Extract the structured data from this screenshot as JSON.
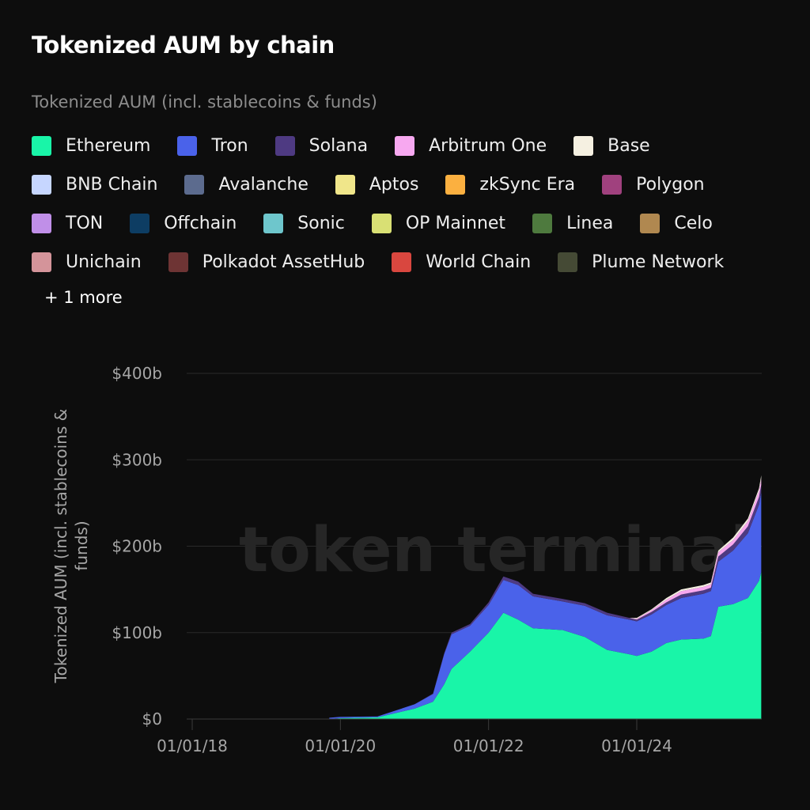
{
  "title": "Tokenized AUM by chain",
  "subtitle": "Tokenized AUM (incl. stablecoins & funds)",
  "legend_rows": [
    [
      {
        "label": "Ethereum",
        "color": "#19f5a8"
      },
      {
        "label": "Tron",
        "color": "#4a62ea"
      },
      {
        "label": "Solana",
        "color": "#4e3a82"
      },
      {
        "label": "Arbitrum One",
        "color": "#f7a8f0"
      },
      {
        "label": "Base",
        "color": "#f5f0e1"
      }
    ],
    [
      {
        "label": "BNB Chain",
        "color": "#c6d6ff"
      },
      {
        "label": "Avalanche",
        "color": "#5c6b8e"
      },
      {
        "label": "Aptos",
        "color": "#f0e68a"
      },
      {
        "label": "zkSync Era",
        "color": "#fbb040"
      },
      {
        "label": "Polygon",
        "color": "#a0417e"
      }
    ],
    [
      {
        "label": "TON",
        "color": "#c08fe8"
      },
      {
        "label": "Offchain",
        "color": "#0d3d63"
      },
      {
        "label": "Sonic",
        "color": "#6ec6cc"
      },
      {
        "label": "OP Mainnet",
        "color": "#d9e074"
      },
      {
        "label": "Linea",
        "color": "#4e7a3e"
      },
      {
        "label": "Celo",
        "color": "#b08850"
      }
    ],
    [
      {
        "label": "Unichain",
        "color": "#d4949a"
      },
      {
        "label": "Polkadot AssetHub",
        "color": "#6e3434"
      },
      {
        "label": "World Chain",
        "color": "#d9473f"
      },
      {
        "label": "Plume Network",
        "color": "#454a35"
      }
    ]
  ],
  "more_label": "+ 1 more",
  "watermark": "token terminal",
  "chart_data": {
    "type": "area",
    "stacked": true,
    "title": "Tokenized AUM by chain",
    "ylabel": "Tokenized AUM (incl. stablecoins & funds)",
    "ylim": [
      0,
      400
    ],
    "yticks": [
      {
        "v": 0,
        "label": "$0"
      },
      {
        "v": 100,
        "label": "$100b"
      },
      {
        "v": 200,
        "label": "$200b"
      },
      {
        "v": 300,
        "label": "$300b"
      },
      {
        "v": 400,
        "label": "$400b"
      }
    ],
    "xlim": [
      2017.9,
      2025.68
    ],
    "xticks": [
      {
        "v": 2018,
        "label": "01/01/18"
      },
      {
        "v": 2020,
        "label": "01/01/20"
      },
      {
        "v": 2022,
        "label": "01/01/22"
      },
      {
        "v": 2024,
        "label": "01/01/24"
      }
    ],
    "grid": true,
    "legend": "top",
    "x": [
      2019.85,
      2020.0,
      2020.5,
      2021.0,
      2021.25,
      2021.4,
      2021.5,
      2021.75,
      2022.0,
      2022.2,
      2022.4,
      2022.6,
      2023.0,
      2023.3,
      2023.6,
      2023.9,
      2024.0,
      2024.2,
      2024.4,
      2024.6,
      2024.9,
      2025.0,
      2025.1,
      2025.3,
      2025.5,
      2025.65,
      2025.68
    ],
    "series": [
      {
        "name": "Ethereum",
        "color": "#19f5a8",
        "values": [
          0,
          1,
          2,
          12,
          20,
          40,
          58,
          78,
          100,
          123,
          115,
          105,
          103,
          95,
          80,
          75,
          73,
          78,
          88,
          92,
          93,
          96,
          130,
          133,
          140,
          160,
          170
        ]
      },
      {
        "name": "Tron",
        "color": "#4a62ea",
        "values": [
          1.5,
          1.5,
          1,
          5,
          9,
          35,
          40,
          30,
          32,
          38,
          40,
          37,
          33,
          36,
          40,
          40,
          40,
          43,
          44,
          48,
          52,
          52,
          52,
          62,
          75,
          88,
          92
        ]
      },
      {
        "name": "Solana",
        "color": "#4e3a82",
        "values": [
          0,
          0,
          0,
          0,
          0.5,
          1,
          2,
          2,
          3,
          4,
          4,
          3,
          3,
          3,
          3,
          2,
          2,
          3,
          3,
          4,
          4,
          4,
          6,
          7,
          8,
          9,
          9
        ]
      },
      {
        "name": "Arbitrum One",
        "color": "#f7a8f0",
        "values": [
          0,
          0,
          0,
          0,
          0,
          0,
          0,
          0,
          0,
          0,
          0,
          0,
          0,
          0,
          0,
          0,
          1,
          2,
          3,
          4,
          4,
          4,
          5,
          5,
          6,
          7,
          7
        ]
      },
      {
        "name": "Base",
        "color": "#f5f0e1",
        "values": [
          0,
          0,
          0,
          0,
          0,
          0,
          0,
          0,
          0,
          0,
          0,
          0,
          0,
          0,
          0,
          0,
          1,
          1,
          2,
          2,
          2,
          2,
          2,
          3,
          3,
          3,
          4
        ]
      }
    ]
  }
}
